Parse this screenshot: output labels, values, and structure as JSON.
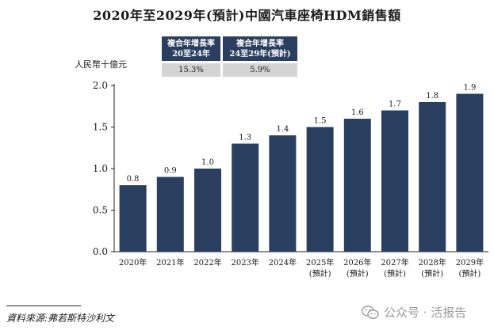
{
  "chart_data": {
    "type": "bar",
    "title": "2020年至2029年(預計)中國汽車座椅HDM銷售額",
    "ylabel": "人民幣十億元",
    "xlabel": "",
    "ylim": [
      0,
      2.0
    ],
    "yticks": [
      "0.0",
      "0.5",
      "1.0",
      "1.5",
      "2.0"
    ],
    "ytick_values": [
      0,
      0.5,
      1.0,
      1.5,
      2.0
    ],
    "categories": [
      {
        "year": "2020年",
        "note": ""
      },
      {
        "year": "2021年",
        "note": ""
      },
      {
        "year": "2022年",
        "note": ""
      },
      {
        "year": "2023年",
        "note": ""
      },
      {
        "year": "2024年",
        "note": ""
      },
      {
        "year": "2025年",
        "note": "(預計)"
      },
      {
        "year": "2026年",
        "note": "(預計)"
      },
      {
        "year": "2027年",
        "note": "(預計)"
      },
      {
        "year": "2028年",
        "note": "(預計)"
      },
      {
        "year": "2029年",
        "note": "(預計)"
      }
    ],
    "values": [
      0.8,
      0.9,
      1.0,
      1.3,
      1.4,
      1.5,
      1.6,
      1.7,
      1.8,
      1.9
    ],
    "value_labels": [
      "0.8",
      "0.9",
      "1.0",
      "1.3",
      "1.4",
      "1.5",
      "1.6",
      "1.7",
      "1.8",
      "1.9"
    ],
    "bar_color": "#2a3f5f"
  },
  "cagr": [
    {
      "line1": "複合年增長率",
      "line2": "20至24年",
      "value": "15.3%"
    },
    {
      "line1": "複合年增長率",
      "line2": "24至29年(預計)",
      "value": "5.9%"
    }
  ],
  "source": "資料來源:弗若斯特沙利文",
  "watermark": "公众号 · 活报告"
}
